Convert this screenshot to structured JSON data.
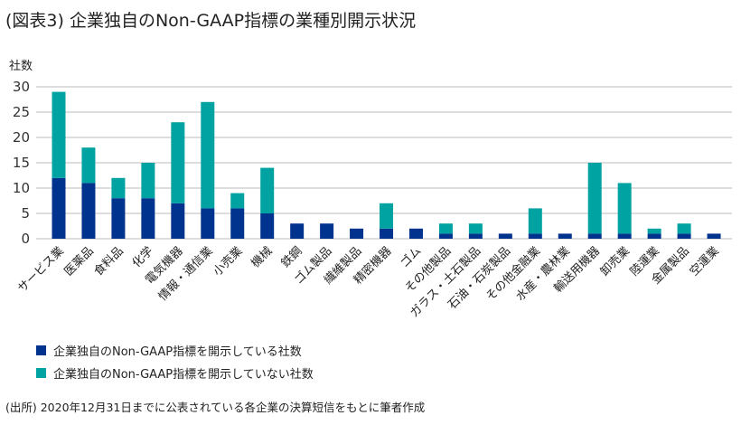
{
  "title": "(図表3) 企業独自のNon-GAAP指標の業種別開示状況",
  "note": "(出所) 2020年12月31日までに公表されている各企業の決算短信をもとに筆者作成",
  "colors": {
    "disclosed": "#00338d",
    "not_disclosed": "#00a3a1",
    "grid": "#bbbbbb"
  },
  "chart_data": {
    "type": "bar",
    "stacked": true,
    "ylabel": "社数",
    "ylim": [
      0,
      30
    ],
    "yticks": [
      0,
      5,
      10,
      15,
      20,
      25,
      30
    ],
    "grid": true,
    "legend_position": "bottom-left",
    "categories": [
      "サービス業",
      "医薬品",
      "食料品",
      "化学",
      "電気機器",
      "情報・通信業",
      "小売業",
      "機械",
      "鉄鋼",
      "ゴム製品",
      "繊維製品",
      "精密機器",
      "ゴム",
      "その他製品",
      "ガラス・土石製品",
      "石油・石炭製品",
      "その他金融業",
      "水産・農林業",
      "輸送用機器",
      "卸売業",
      "陸運業",
      "金属製品",
      "空運業"
    ],
    "series": [
      {
        "name": "企業独自のNon-GAAP指標を開示している社数",
        "values": [
          12,
          11,
          8,
          8,
          7,
          6,
          6,
          5,
          3,
          3,
          2,
          2,
          2,
          1,
          1,
          1,
          1,
          1,
          1,
          1,
          1,
          1,
          1
        ]
      },
      {
        "name": "企業独自のNon-GAAP指標を開示していない社数",
        "values": [
          17,
          7,
          4,
          7,
          16,
          21,
          3,
          9,
          0,
          0,
          0,
          5,
          0,
          2,
          2,
          0,
          5,
          0,
          14,
          10,
          1,
          2,
          0
        ]
      }
    ]
  }
}
